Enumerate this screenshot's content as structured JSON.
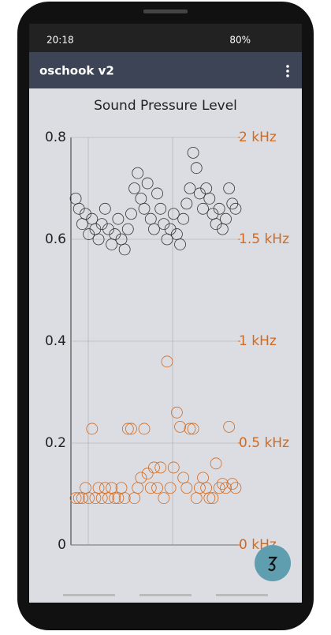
{
  "status_bar": {
    "time": "20:18",
    "battery": "80%"
  },
  "app_bar": {
    "title": "oschook v2"
  },
  "chart_data": {
    "type": "scatter",
    "title": "Sound Pressure Level",
    "ylim": [
      0,
      0.8
    ],
    "yticks": [
      0,
      0.2,
      0.4,
      0.6,
      0.8
    ],
    "y2lim": [
      0,
      2000
    ],
    "y2ticks": [
      {
        "value": 0,
        "label": "0 kHz"
      },
      {
        "value": 500,
        "label": "0.5 kHz"
      },
      {
        "value": 1000,
        "label": "1 kHz"
      },
      {
        "value": 1500,
        "label": "1.5 kHz"
      },
      {
        "value": 2000,
        "label": "2 kHz"
      }
    ],
    "grid": true,
    "series": [
      {
        "color": "#333333",
        "values": [
          0.68,
          0.66,
          0.63,
          0.65,
          0.61,
          0.64,
          0.62,
          0.6,
          0.63,
          0.66,
          0.62,
          0.59,
          0.61,
          0.64,
          0.6,
          0.58,
          0.62,
          0.65,
          0.7,
          0.73,
          0.68,
          0.66,
          0.71,
          0.64,
          0.62,
          0.69,
          0.66,
          0.63,
          0.6,
          0.62,
          0.65,
          0.61,
          0.59,
          0.64,
          0.67,
          0.7,
          0.77,
          0.74,
          0.69,
          0.66,
          0.7,
          0.68,
          0.65,
          0.63,
          0.66,
          0.62,
          0.64,
          0.7,
          0.67,
          0.66
        ]
      },
      {
        "color": "#d2691e",
        "axis": "y2",
        "values": [
          230,
          230,
          230,
          280,
          230,
          570,
          230,
          280,
          230,
          280,
          230,
          280,
          230,
          230,
          280,
          230,
          570,
          570,
          230,
          280,
          330,
          570,
          350,
          280,
          380,
          280,
          380,
          230,
          900,
          280,
          380,
          650,
          580,
          330,
          280,
          570,
          570,
          230,
          280,
          330,
          280,
          230,
          230,
          400,
          280,
          300,
          280,
          580,
          300,
          280
        ]
      }
    ]
  }
}
